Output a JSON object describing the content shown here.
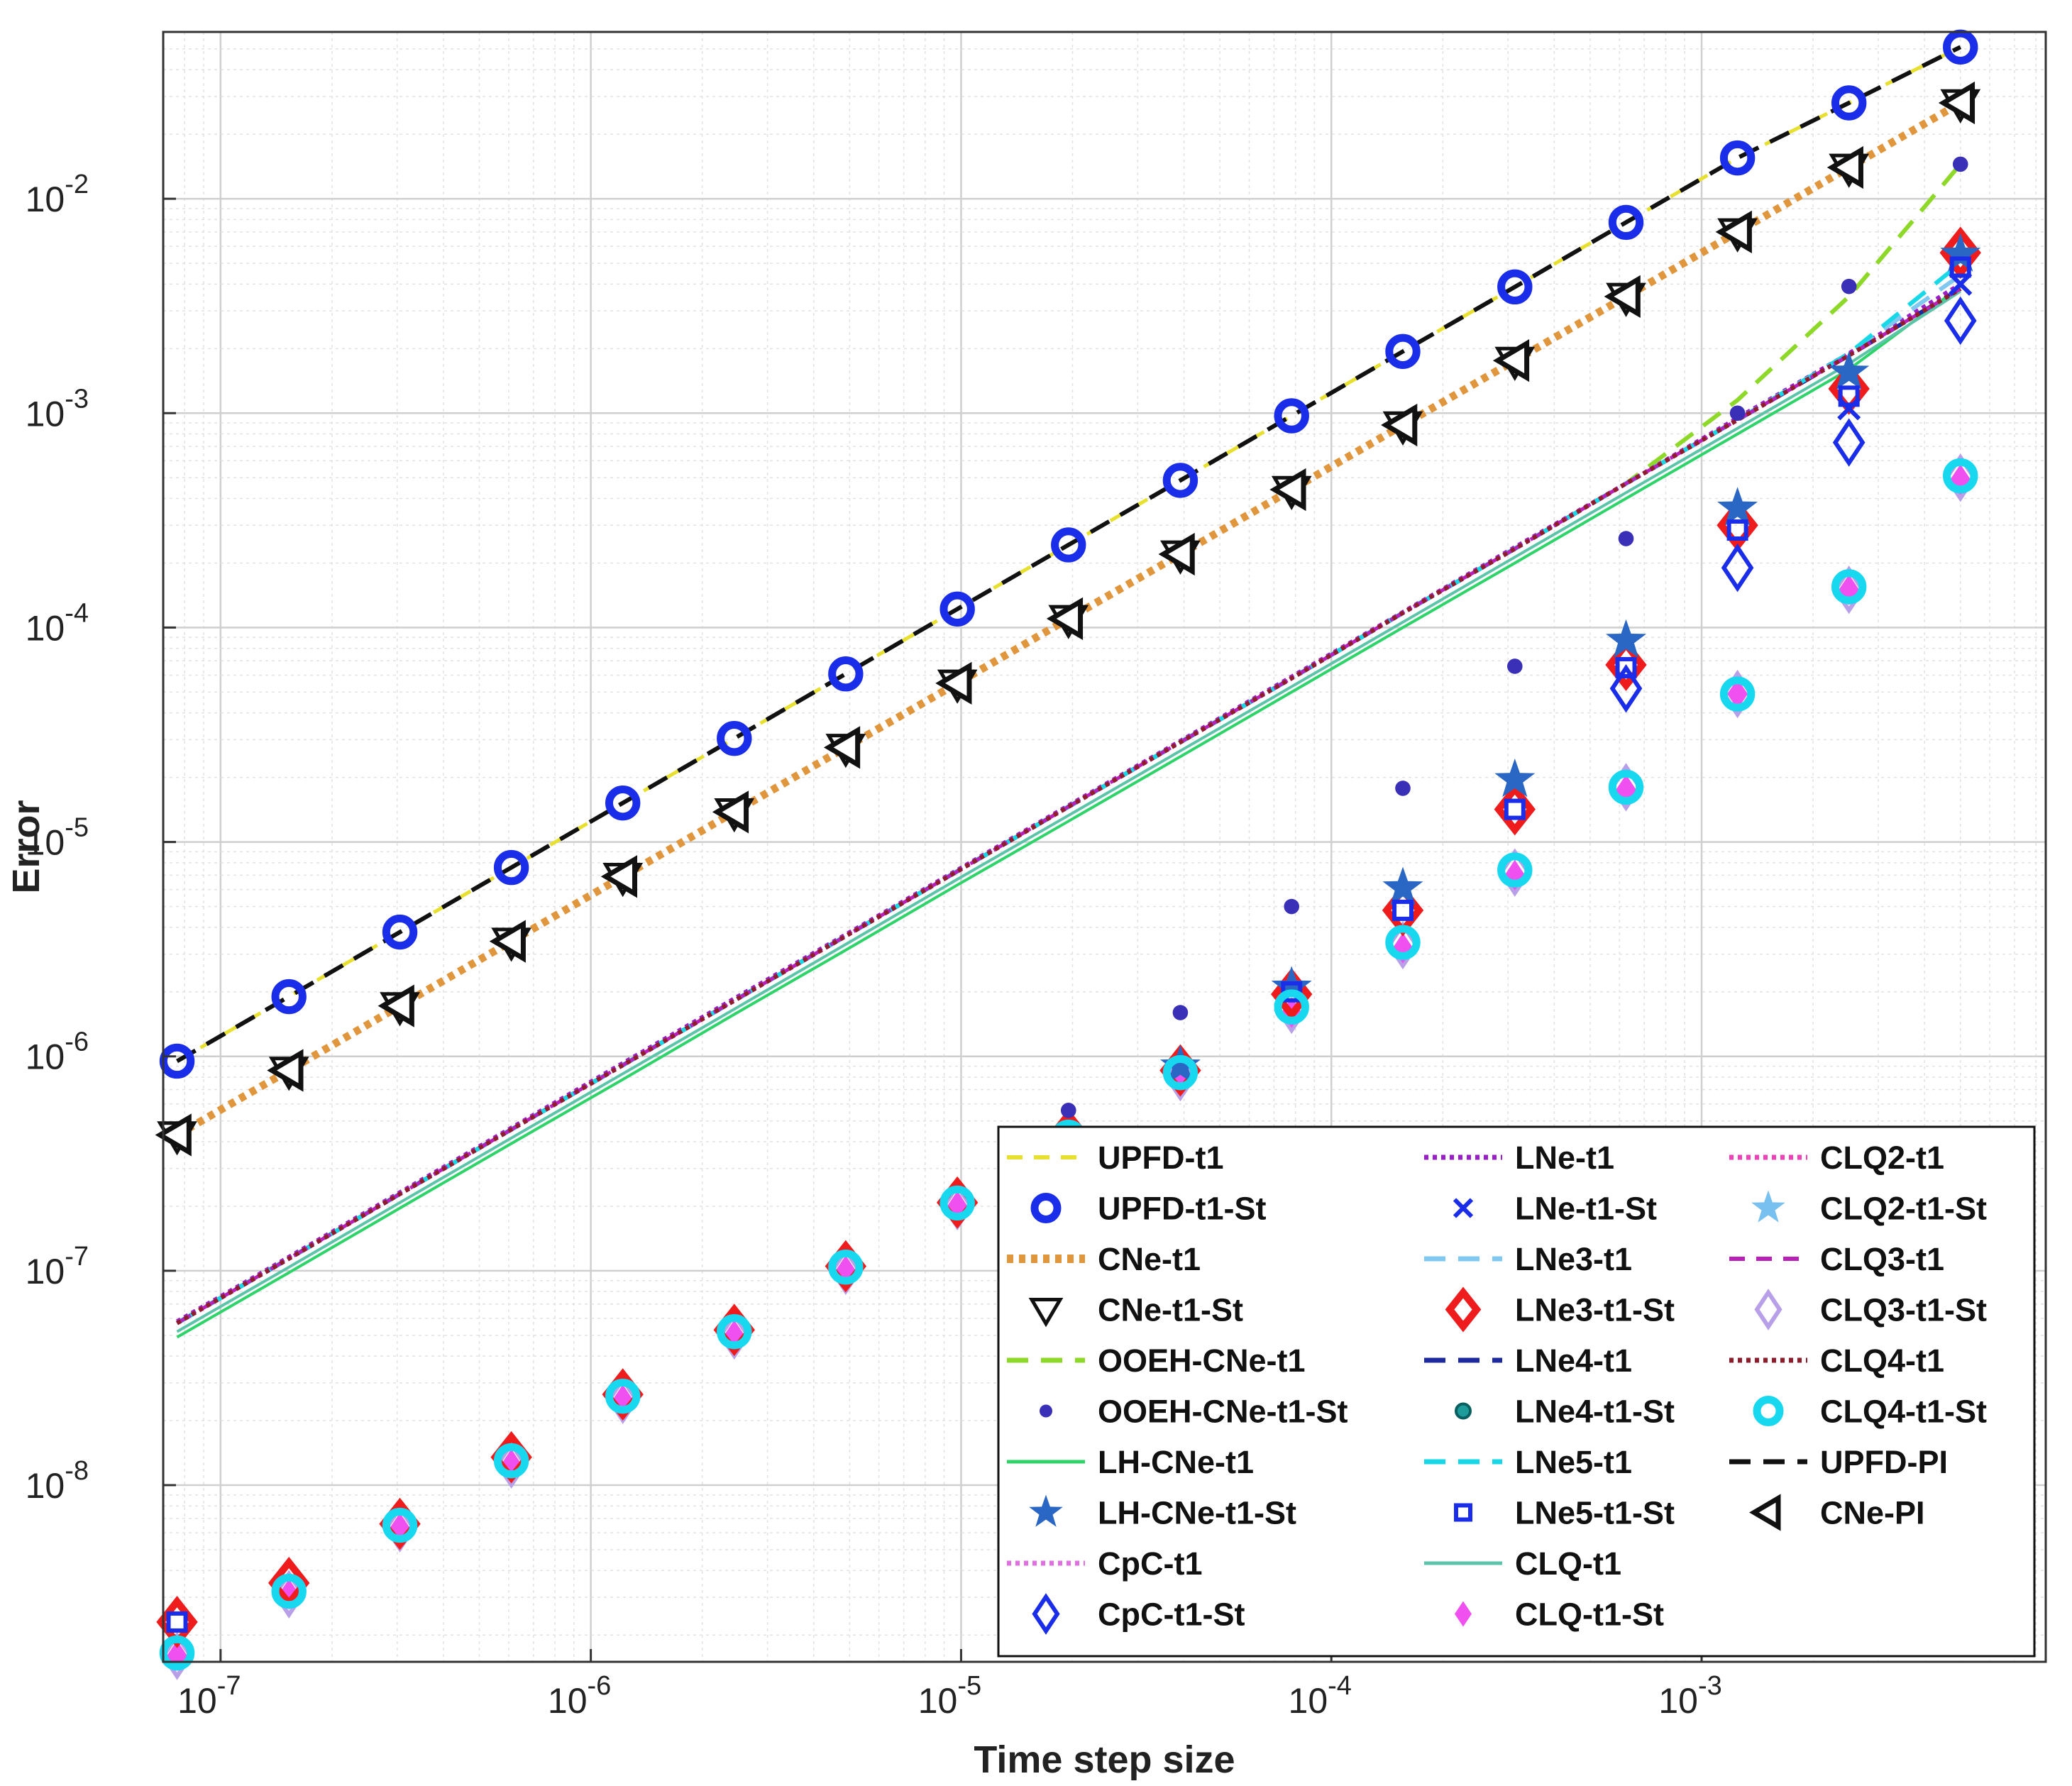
{
  "chart_data": {
    "type": "line",
    "xscale": "log",
    "yscale": "log",
    "xlabel": "Time step size",
    "ylabel": "Error",
    "xlim": [
      7e-08,
      0.0085
    ],
    "ylim": [
      1.5e-09,
      0.06
    ],
    "grid": true,
    "legend_position": "bottom-right",
    "xticks": [
      {
        "value": 1e-07,
        "base": "10",
        "exp": "-7"
      },
      {
        "value": 1e-06,
        "base": "10",
        "exp": "-6"
      },
      {
        "value": 1e-05,
        "base": "10",
        "exp": "-5"
      },
      {
        "value": 0.0001,
        "base": "10",
        "exp": "-4"
      },
      {
        "value": 0.001,
        "base": "10",
        "exp": "-3"
      }
    ],
    "yticks": [
      {
        "value": 1e-08,
        "base": "10",
        "exp": "-8"
      },
      {
        "value": 1e-07,
        "base": "10",
        "exp": "-7"
      },
      {
        "value": 1e-06,
        "base": "10",
        "exp": "-6"
      },
      {
        "value": 1e-05,
        "base": "10",
        "exp": "-5"
      },
      {
        "value": 0.0001,
        "base": "10",
        "exp": "-4"
      },
      {
        "value": 0.001,
        "base": "10",
        "exp": "-3"
      },
      {
        "value": 0.01,
        "base": "10",
        "exp": "-2"
      }
    ],
    "x": [
      7.63e-08,
      1.53e-07,
      3.05e-07,
      6.1e-07,
      1.22e-06,
      2.44e-06,
      4.88e-06,
      9.77e-06,
      1.95e-05,
      3.91e-05,
      7.81e-05,
      0.000156,
      0.000313,
      0.000625,
      0.00125,
      0.0025,
      0.005
    ],
    "series": [
      {
        "name": "UPFD-t1",
        "color": "#e8e030",
        "style": "line",
        "dash": "dashed",
        "values": [
          9.5e-07,
          1.9e-06,
          3.8e-06,
          7.6e-06,
          1.52e-05,
          3.04e-05,
          6.08e-05,
          0.000122,
          0.000243,
          0.000486,
          0.000972,
          0.00194,
          0.00388,
          0.00776,
          0.0155,
          0.028,
          0.051
        ]
      },
      {
        "name": "UPFD-t1-St",
        "color": "#1a2de8",
        "style": "marker",
        "marker": "circle-ring",
        "values": [
          9.5e-07,
          1.9e-06,
          3.8e-06,
          7.6e-06,
          1.52e-05,
          3.04e-05,
          6.08e-05,
          0.000122,
          0.000243,
          0.000486,
          0.000972,
          0.00194,
          0.00388,
          0.00776,
          0.0155,
          0.028,
          0.051
        ]
      },
      {
        "name": "CNe-t1",
        "color": "#e0963c",
        "style": "line",
        "dash": "dotted-thick",
        "values": [
          4.3e-07,
          8.6e-07,
          1.72e-06,
          3.44e-06,
          6.9e-06,
          1.38e-05,
          2.76e-05,
          5.5e-05,
          0.00011,
          0.00022,
          0.00044,
          0.00088,
          0.00176,
          0.0035,
          0.007,
          0.014,
          0.028
        ]
      },
      {
        "name": "CNe-t1-St",
        "color": "#111111",
        "style": "marker",
        "marker": "triangle-down",
        "values": [
          4.3e-07,
          8.6e-07,
          1.72e-06,
          3.44e-06,
          6.9e-06,
          1.38e-05,
          2.76e-05,
          5.5e-05,
          0.00011,
          0.00022,
          0.00044,
          0.00088,
          0.00176,
          0.0035,
          0.007,
          0.014,
          0.028
        ]
      },
      {
        "name": "OOEH-CNe-t1",
        "color": "#8ed82a",
        "style": "line",
        "dash": "long-dash",
        "values": [
          5.7e-08,
          1.14e-07,
          2.28e-07,
          4.56e-07,
          9.1e-07,
          1.82e-06,
          3.64e-06,
          7.3e-06,
          1.46e-05,
          2.92e-05,
          5.8e-05,
          0.000117,
          0.000233,
          0.00047,
          0.00115,
          0.0035,
          0.0145
        ]
      },
      {
        "name": "OOEH-CNe-t1-St",
        "color": "#3a30b8",
        "style": "marker",
        "marker": "dot",
        "values": [
          null,
          null,
          null,
          null,
          null,
          null,
          null,
          null,
          5.6e-07,
          1.6e-06,
          5e-06,
          1.78e-05,
          6.6e-05,
          0.00026,
          0.001,
          0.0039,
          0.0145
        ]
      },
      {
        "name": "LH-CNe-t1",
        "color": "#2ed36a",
        "style": "line",
        "dash": "solid",
        "values": [
          4.9e-08,
          9.8e-08,
          1.96e-07,
          3.92e-07,
          7.8e-07,
          1.57e-06,
          3.13e-06,
          6.3e-06,
          1.25e-05,
          2.5e-05,
          5e-05,
          0.0001,
          0.0002,
          0.0004,
          0.0008,
          0.0016,
          0.0039
        ]
      },
      {
        "name": "LH-CNe-t1-St",
        "color": "#2a66c4",
        "style": "marker",
        "marker": "star",
        "values": [
          null,
          null,
          null,
          null,
          null,
          null,
          null,
          null,
          null,
          9e-07,
          2.1e-06,
          6.1e-06,
          1.95e-05,
          8.7e-05,
          0.00036,
          0.00155,
          0.0055
        ]
      },
      {
        "name": "CpC-t1",
        "color": "#e070e0",
        "style": "line",
        "dash": "dotted",
        "values": [
          5.7e-08,
          1.14e-07,
          2.28e-07,
          4.56e-07,
          9.1e-07,
          1.82e-06,
          3.64e-06,
          7.3e-06,
          1.46e-05,
          2.92e-05,
          5.8e-05,
          0.000117,
          0.000233,
          0.00047,
          0.00093,
          0.00186,
          0.0038
        ]
      },
      {
        "name": "CpC-t1-St",
        "color": "#1a2de8",
        "style": "marker",
        "marker": "diamond-open",
        "values": [
          null,
          null,
          null,
          null,
          null,
          null,
          null,
          null,
          null,
          null,
          null,
          null,
          null,
          5.2e-05,
          0.00019,
          0.00073,
          0.0027
        ]
      },
      {
        "name": "LNe-t1",
        "color": "#9a1ec8",
        "style": "line",
        "dash": "dotted",
        "values": [
          5.8e-08,
          1.16e-07,
          2.32e-07,
          4.64e-07,
          9.3e-07,
          1.86e-06,
          3.7e-06,
          7.4e-06,
          1.48e-05,
          2.96e-05,
          5.9e-05,
          0.000118,
          0.000237,
          0.00047,
          0.00095,
          0.0019,
          0.004
        ]
      },
      {
        "name": "LNe-t1-St",
        "color": "#1a2de8",
        "style": "marker",
        "marker": "x",
        "values": [
          null,
          null,
          null,
          null,
          null,
          null,
          null,
          null,
          null,
          null,
          null,
          null,
          null,
          null,
          null,
          0.00105,
          0.004
        ]
      },
      {
        "name": "LNe3-t1",
        "color": "#80c8f0",
        "style": "line",
        "dash": "long-dash",
        "values": [
          5.7e-08,
          1.14e-07,
          2.28e-07,
          4.56e-07,
          9.1e-07,
          1.82e-06,
          3.64e-06,
          7.3e-06,
          1.46e-05,
          2.92e-05,
          5.8e-05,
          0.000117,
          0.000233,
          0.00047,
          0.00093,
          0.0019,
          0.0044
        ]
      },
      {
        "name": "LNe3-t1-St",
        "color": "#ee1c1c",
        "style": "marker",
        "marker": "diamond-open-thick",
        "values": [
          2.3e-09,
          3.5e-09,
          6.6e-09,
          1.35e-08,
          2.65e-08,
          5.3e-08,
          1.05e-07,
          2.08e-07,
          4.3e-07,
          8.6e-07,
          1.95e-06,
          4.8e-06,
          1.42e-05,
          6.7e-05,
          0.0003,
          0.0013,
          0.0056
        ]
      },
      {
        "name": "LNe4-t1",
        "color": "#1c2a9e",
        "style": "line",
        "dash": "long-dash",
        "values": [
          5.7e-08,
          1.14e-07,
          2.28e-07,
          4.56e-07,
          9.1e-07,
          1.82e-06,
          3.64e-06,
          7.3e-06,
          1.46e-05,
          2.92e-05,
          5.8e-05,
          0.000117,
          0.000233,
          0.00047,
          0.00093,
          0.00186,
          0.0038
        ]
      },
      {
        "name": "LNe4-t1-St",
        "color": "#1e9c9c",
        "style": "marker",
        "marker": "circle-dot",
        "values": [
          null,
          null,
          null,
          null,
          null,
          null,
          null,
          null,
          null,
          null,
          null,
          null,
          null,
          null,
          null,
          null,
          null
        ]
      },
      {
        "name": "LNe5-t1",
        "color": "#18d8e8",
        "style": "line",
        "dash": "long-dash",
        "values": [
          5.7e-08,
          1.14e-07,
          2.28e-07,
          4.56e-07,
          9.1e-07,
          1.82e-06,
          3.64e-06,
          7.3e-06,
          1.46e-05,
          2.92e-05,
          5.8e-05,
          0.000117,
          0.000233,
          0.00047,
          0.00093,
          0.0019,
          0.005
        ]
      },
      {
        "name": "LNe5-t1-St",
        "color": "#1a2de8",
        "style": "marker",
        "marker": "square-open",
        "values": [
          2.3e-09,
          null,
          null,
          null,
          null,
          null,
          null,
          null,
          null,
          null,
          2e-06,
          4.8e-06,
          1.42e-05,
          6.5e-05,
          0.000285,
          0.0012,
          0.0048
        ]
      },
      {
        "name": "CLQ-t1",
        "color": "#5cc4a8",
        "style": "line",
        "dash": "solid",
        "values": [
          5.2e-08,
          1.04e-07,
          2.08e-07,
          4.16e-07,
          8.3e-07,
          1.66e-06,
          3.33e-06,
          6.7e-06,
          1.33e-05,
          2.66e-05,
          5.3e-05,
          0.000106,
          0.000213,
          0.000426,
          0.00085,
          0.0017,
          0.0037
        ]
      },
      {
        "name": "CLQ-t1-St",
        "color": "#f050f0",
        "style": "marker",
        "marker": "diamond-filled",
        "values": [
          1.6e-09,
          3.1e-09,
          6.3e-09,
          1.25e-08,
          2.5e-08,
          5e-08,
          1e-07,
          2e-07,
          4e-07,
          8e-07,
          1.6e-06,
          3.2e-06,
          7e-06,
          1.75e-05,
          4.9e-05,
          0.00015,
          0.00049
        ]
      },
      {
        "name": "CLQ2-t1",
        "color": "#f040b8",
        "style": "line",
        "dash": "dotted",
        "values": [
          5.7e-08,
          1.14e-07,
          2.28e-07,
          4.56e-07,
          9.1e-07,
          1.82e-06,
          3.64e-06,
          7.3e-06,
          1.46e-05,
          2.92e-05,
          5.8e-05,
          0.000117,
          0.000233,
          0.00047,
          0.00093,
          0.00186,
          0.0038
        ]
      },
      {
        "name": "CLQ2-t1-St",
        "color": "#78c0f0",
        "style": "marker",
        "marker": "star",
        "values": [
          null,
          null,
          null,
          null,
          null,
          null,
          null,
          null,
          null,
          null,
          null,
          null,
          null,
          null,
          null,
          null,
          null
        ]
      },
      {
        "name": "CLQ3-t1",
        "color": "#b820b8",
        "style": "line",
        "dash": "dashed",
        "values": [
          5.7e-08,
          1.14e-07,
          2.28e-07,
          4.56e-07,
          9.1e-07,
          1.82e-06,
          3.64e-06,
          7.3e-06,
          1.46e-05,
          2.92e-05,
          5.8e-05,
          0.000117,
          0.000233,
          0.00047,
          0.00093,
          0.00186,
          0.0038
        ]
      },
      {
        "name": "CLQ3-t1-St",
        "color": "#b8a0e8",
        "style": "marker",
        "marker": "diamond-open",
        "values": [
          1.6e-09,
          3.1e-09,
          6.3e-09,
          1.25e-08,
          2.5e-08,
          5e-08,
          1e-07,
          2e-07,
          4e-07,
          8e-07,
          1.65e-06,
          3.3e-06,
          7.2e-06,
          1.8e-05,
          4.9e-05,
          0.00015,
          0.0005
        ]
      },
      {
        "name": "CLQ4-t1",
        "color": "#8e1c2a",
        "style": "line",
        "dash": "dotted",
        "values": [
          5.7e-08,
          1.14e-07,
          2.28e-07,
          4.56e-07,
          9.1e-07,
          1.82e-06,
          3.64e-06,
          7.3e-06,
          1.46e-05,
          2.92e-05,
          5.8e-05,
          0.000117,
          0.000233,
          0.00047,
          0.00093,
          0.00186,
          0.0038
        ]
      },
      {
        "name": "CLQ4-t1-St",
        "color": "#18d8f0",
        "style": "marker",
        "marker": "circle-ring",
        "values": [
          1.65e-09,
          3.2e-09,
          6.5e-09,
          1.3e-08,
          2.6e-08,
          5.2e-08,
          1.04e-07,
          2.07e-07,
          4.2e-07,
          8.4e-07,
          1.7e-06,
          3.4e-06,
          7.4e-06,
          1.8e-05,
          4.9e-05,
          0.000155,
          0.00051
        ]
      },
      {
        "name": "UPFD-PI",
        "color": "#111111",
        "style": "line",
        "dash": "long-dash",
        "values": [
          9.5e-07,
          1.9e-06,
          3.8e-06,
          7.6e-06,
          1.52e-05,
          3.04e-05,
          6.08e-05,
          0.000122,
          0.000243,
          0.000486,
          0.000972,
          0.00194,
          0.00388,
          0.00776,
          0.0155,
          0.028,
          0.051
        ]
      },
      {
        "name": "CNe-PI",
        "color": "#111111",
        "style": "marker",
        "marker": "triangle-left",
        "values": [
          4.3e-07,
          8.6e-07,
          1.72e-06,
          3.44e-06,
          6.9e-06,
          1.38e-05,
          2.76e-05,
          5.5e-05,
          0.00011,
          0.00022,
          0.00044,
          0.00088,
          0.00176,
          0.0035,
          0.007,
          0.014,
          0.028
        ]
      }
    ],
    "legend_order": [
      "UPFD-t1",
      "UPFD-t1-St",
      "CNe-t1",
      "CNe-t1-St",
      "OOEH-CNe-t1",
      "OOEH-CNe-t1-St",
      "LH-CNe-t1",
      "LH-CNe-t1-St",
      "CpC-t1",
      "CpC-t1-St",
      "LNe-t1",
      "LNe-t1-St",
      "LNe3-t1",
      "LNe3-t1-St",
      "LNe4-t1",
      "LNe4-t1-St",
      "LNe5-t1",
      "LNe5-t1-St",
      "CLQ-t1",
      "CLQ-t1-St",
      "CLQ2-t1",
      "CLQ2-t1-St",
      "CLQ3-t1",
      "CLQ3-t1-St",
      "CLQ4-t1",
      "CLQ4-t1-St",
      "UPFD-PI",
      "CNe-PI"
    ]
  }
}
